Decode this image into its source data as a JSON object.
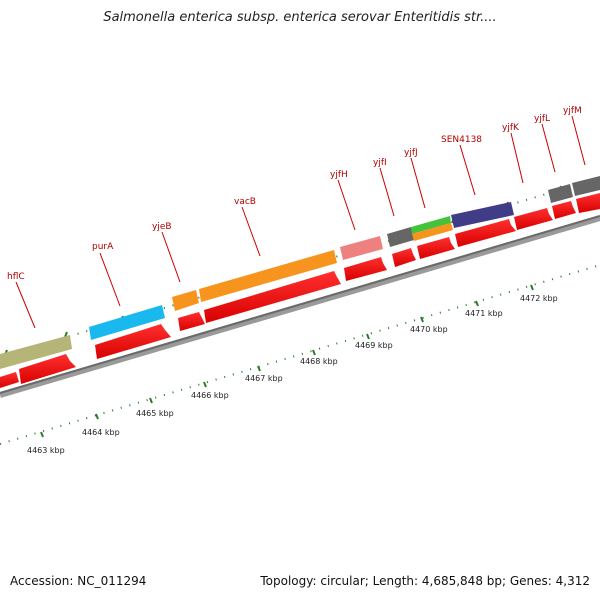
{
  "header": {
    "title": "Salmonella enterica subsp. enterica serovar Enteritidis str...."
  },
  "footer": {
    "accession": "Accession: NC_011294",
    "summary": "Topology: circular; Length: 4,685,848 bp; Genes: 4,312"
  },
  "genes": [
    {
      "name": "hflC",
      "color": "#b5b577"
    },
    {
      "name": "purA",
      "color": "#19b8ee"
    },
    {
      "name": "yjeB",
      "color": "#f7941d"
    },
    {
      "name": "vacB",
      "color": "#f7941d"
    },
    {
      "name": "yjfH",
      "color": "#ef8080"
    },
    {
      "name": "yjfI",
      "color": "#666666"
    },
    {
      "name": "yjfJ",
      "color": "#44c23a"
    },
    {
      "name": "SEN4138",
      "color": "#403c88"
    },
    {
      "name": "yjfK",
      "color": "#e8201c"
    },
    {
      "name": "yjfL",
      "color": "#666666"
    },
    {
      "name": "yjfM",
      "color": "#666666"
    }
  ],
  "scale_labels": [
    "4463 kbp",
    "4464 kbp",
    "4465 kbp",
    "4466 kbp",
    "4467 kbp",
    "4468 kbp",
    "4469 kbp",
    "4470 kbp",
    "4471 kbp",
    "4472 kbp"
  ]
}
